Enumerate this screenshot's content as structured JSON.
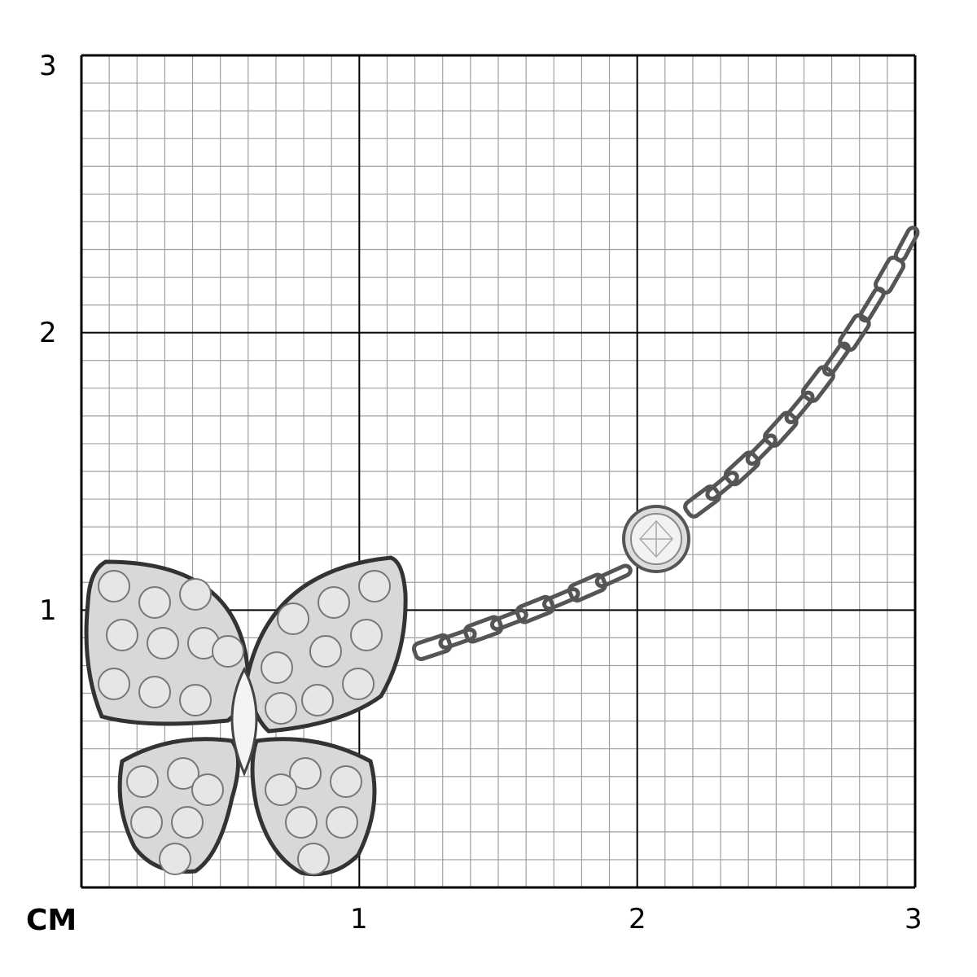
{
  "axis": {
    "unit": "CM",
    "x_ticks": [
      "1",
      "2",
      "3"
    ],
    "y_ticks": [
      "3",
      "2",
      "1"
    ],
    "range_cm": [
      0,
      3
    ],
    "minor_divisions_per_cm": 10
  },
  "colors": {
    "minor_grid": "#a0a0a0",
    "major_grid": "#000000",
    "metal": "#c8c8c8",
    "diamond": "#e6e6e6"
  },
  "product": {
    "image": "butterfly-pave-diamond-pendant-on-chain-icon"
  }
}
